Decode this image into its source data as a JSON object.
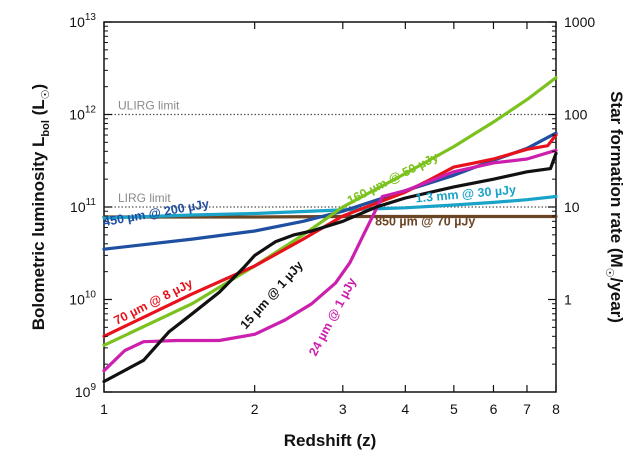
{
  "chart_data": {
    "type": "line",
    "xlabel": "Redshift (z)",
    "ylabel_left": {
      "main": "Bolometric luminosity L",
      "sub": "bol",
      "unit_open": " (L",
      "sun": "☉",
      "unit_close": ")"
    },
    "ylabel_right": {
      "main": "Star formation rate (M",
      "sun": "☉",
      "unit": "/year)"
    },
    "xscale": "log",
    "xlim": [
      1,
      8
    ],
    "x_ticks": [
      "1",
      "2",
      "3",
      "4",
      "5",
      "6",
      "7",
      "8"
    ],
    "x_tick_values": [
      1,
      2,
      3,
      4,
      5,
      6,
      7,
      8
    ],
    "yscale": "log",
    "ylim": [
      1000000000.0,
      10000000000000.0
    ],
    "y_ticks_left": [
      {
        "value": 1000000000.0,
        "base": "10",
        "exp": "9"
      },
      {
        "value": 10000000000.0,
        "base": "10",
        "exp": "10"
      },
      {
        "value": 100000000000.0,
        "base": "10",
        "exp": "11"
      },
      {
        "value": 1000000000000.0,
        "base": "10",
        "exp": "12"
      },
      {
        "value": 10000000000000.0,
        "base": "10",
        "exp": "13"
      }
    ],
    "y_ticks_right": [
      {
        "value": 10000000000.0,
        "label": "1"
      },
      {
        "value": 100000000000.0,
        "label": "10"
      },
      {
        "value": 1000000000000.0,
        "label": "100"
      },
      {
        "value": 10000000000000.0,
        "label": "1000"
      }
    ],
    "reference_lines": [
      {
        "label": "ULIRG limit",
        "y": 1000000000000.0,
        "style": "dotted",
        "color": "#555555"
      },
      {
        "label": "LIRG limit",
        "y": 100000000000.0,
        "style": "dotted",
        "color": "#555555"
      }
    ],
    "series": [
      {
        "name": "850 µm @ 70 µJy",
        "color": "#6b4423",
        "x": [
          1,
          2,
          3,
          4,
          5,
          6,
          7,
          8
        ],
        "y": [
          78000000000.0,
          78000000000.0,
          79000000000.0,
          79000000000.0,
          79000000000.0,
          79000000000.0,
          79000000000.0,
          79000000000.0
        ]
      },
      {
        "name": "1.3 mm @ 30 µJy",
        "color": "#1aa3c9",
        "x": [
          1,
          1.5,
          2,
          3,
          4,
          5,
          6,
          7,
          8
        ],
        "y": [
          76000000000.0,
          82000000000.0,
          85000000000.0,
          93000000000.0,
          98000000000.0,
          105000000000.0,
          112000000000.0,
          120000000000.0,
          130000000000.0
        ]
      },
      {
        "name": "450 µm @ 200 µJy",
        "color": "#1f4fa0",
        "x": [
          1,
          1.5,
          2,
          2.5,
          3,
          4,
          5,
          6,
          7,
          8
        ],
        "y": [
          35000000000.0,
          45000000000.0,
          55000000000.0,
          70000000000.0,
          90000000000.0,
          150000000000.0,
          220000000000.0,
          320000000000.0,
          430000000000.0,
          630000000000.0
        ]
      },
      {
        "name": "160 µm @ 50 µJy",
        "color": "#7cc21e",
        "x": [
          1,
          1.5,
          2,
          2.5,
          3,
          4,
          5,
          6,
          7,
          8
        ],
        "y": [
          3200000000.0,
          9000000000.0,
          23000000000.0,
          50000000000.0,
          100000000000.0,
          230000000000.0,
          450000000000.0,
          830000000000.0,
          1450000000000.0,
          2500000000000.0
        ]
      },
      {
        "name": "70 µm @ 8 µJy",
        "color": "#e8121c",
        "x": [
          1,
          1.5,
          2,
          2.5,
          3,
          3.5,
          4,
          4.5,
          5,
          5.5,
          6,
          7,
          7.7,
          8
        ],
        "y": [
          4000000000.0,
          11500000000.0,
          23000000000.0,
          45000000000.0,
          80000000000.0,
          110000000000.0,
          145000000000.0,
          200000000000.0,
          270000000000.0,
          300000000000.0,
          330000000000.0,
          420000000000.0,
          460000000000.0,
          600000000000.0
        ]
      },
      {
        "name": "24 µm @ 1 µJy",
        "color": "#cc1fae",
        "x": [
          1,
          1.1,
          1.2,
          1.4,
          1.7,
          2,
          2.3,
          2.6,
          2.9,
          3.1,
          3.3,
          3.6,
          4,
          5,
          6,
          7,
          8
        ],
        "y": [
          1700000000.0,
          2800000000.0,
          3500000000.0,
          3600000000.0,
          3600000000.0,
          4200000000.0,
          6000000000.0,
          9000000000.0,
          15000000000.0,
          25000000000.0,
          50000000000.0,
          130000000000.0,
          150000000000.0,
          240000000000.0,
          300000000000.0,
          330000000000.0,
          410000000000.0
        ]
      },
      {
        "name": "15 µm @ 1 µJy",
        "color": "#111111",
        "x": [
          1,
          1.2,
          1.35,
          1.5,
          1.7,
          1.9,
          2,
          2.2,
          2.4,
          2.6,
          3,
          3.5,
          4,
          5,
          6,
          7,
          7.8,
          8
        ],
        "y": [
          1300000000.0,
          2200000000.0,
          4500000000.0,
          7000000000.0,
          12000000000.0,
          22000000000.0,
          30000000000.0,
          42000000000.0,
          50000000000.0,
          55000000000.0,
          70000000000.0,
          100000000000.0,
          125000000000.0,
          165000000000.0,
          200000000000.0,
          240000000000.0,
          260000000000.0,
          380000000000.0
        ]
      }
    ]
  }
}
